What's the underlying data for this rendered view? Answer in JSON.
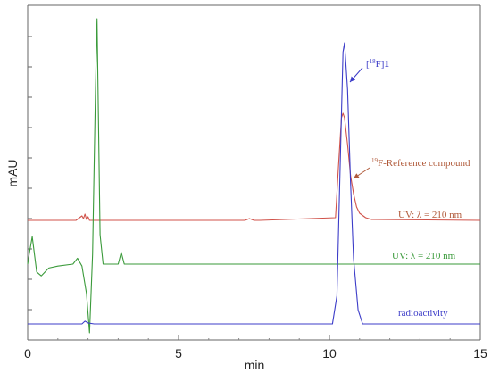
{
  "chart_data": {
    "type": "line",
    "xlabel": "min",
    "ylabel": "mAU",
    "xlim": [
      0,
      15
    ],
    "x_ticks": [
      0,
      5,
      10,
      15
    ],
    "grid": false,
    "series": [
      {
        "name": "UV: λ = 210 nm",
        "color": "#d0524a",
        "x": [
          0,
          1.6,
          1.8,
          1.85,
          1.9,
          1.95,
          2.0,
          2.05,
          2.3,
          7.2,
          7.35,
          7.5,
          7.7,
          10.2,
          10.3,
          10.4,
          10.45,
          10.5,
          10.6,
          10.7,
          10.8,
          10.9,
          11.0,
          11.2,
          11.4,
          15
        ],
        "y": [
          0,
          0,
          5,
          2,
          7,
          1,
          4,
          0,
          0,
          0,
          2,
          0,
          0,
          3,
          60,
          115,
          120,
          115,
          85,
          50,
          30,
          15,
          8,
          3,
          1,
          0
        ]
      },
      {
        "name": "UV: λ = 210 nm",
        "color": "#3a9a3a",
        "x": [
          0,
          0.05,
          0.15,
          0.3,
          0.45,
          0.7,
          1.0,
          1.5,
          1.65,
          1.8,
          1.95,
          2.05,
          2.15,
          2.25,
          2.3,
          2.4,
          2.5,
          3.0,
          3.1,
          3.2,
          5,
          10,
          15
        ],
        "y": [
          0,
          10,
          28,
          -8,
          -12,
          -4,
          -2,
          0,
          6,
          -2,
          -30,
          -70,
          10,
          180,
          250,
          30,
          0,
          0,
          12,
          0,
          0,
          0,
          0
        ]
      },
      {
        "name": "radioactivity",
        "color": "#3c3cc8",
        "x": [
          0,
          1.8,
          1.9,
          2.0,
          2.2,
          10.1,
          10.25,
          10.35,
          10.45,
          10.5,
          10.6,
          10.7,
          10.8,
          10.95,
          11.1,
          15
        ],
        "y": [
          0,
          0,
          3,
          1,
          0,
          0,
          30,
          160,
          290,
          300,
          250,
          150,
          70,
          15,
          0,
          0
        ]
      }
    ],
    "annotations": [
      {
        "id": "f18",
        "mass": "18",
        "element": "F",
        "name": "1",
        "color": "#3c3cc8"
      },
      {
        "id": "f19",
        "mass": "19",
        "text": "F-Reference compound",
        "color": "#b05a3a"
      },
      {
        "id": "uv1",
        "text": "UV: λ = 210 nm",
        "color": "#b05a3a"
      },
      {
        "id": "uv2",
        "text": "UV: λ = 210 nm",
        "color": "#3a9a3a"
      },
      {
        "id": "rad",
        "text": "radioactivity",
        "color": "#3c3cc8"
      }
    ]
  }
}
